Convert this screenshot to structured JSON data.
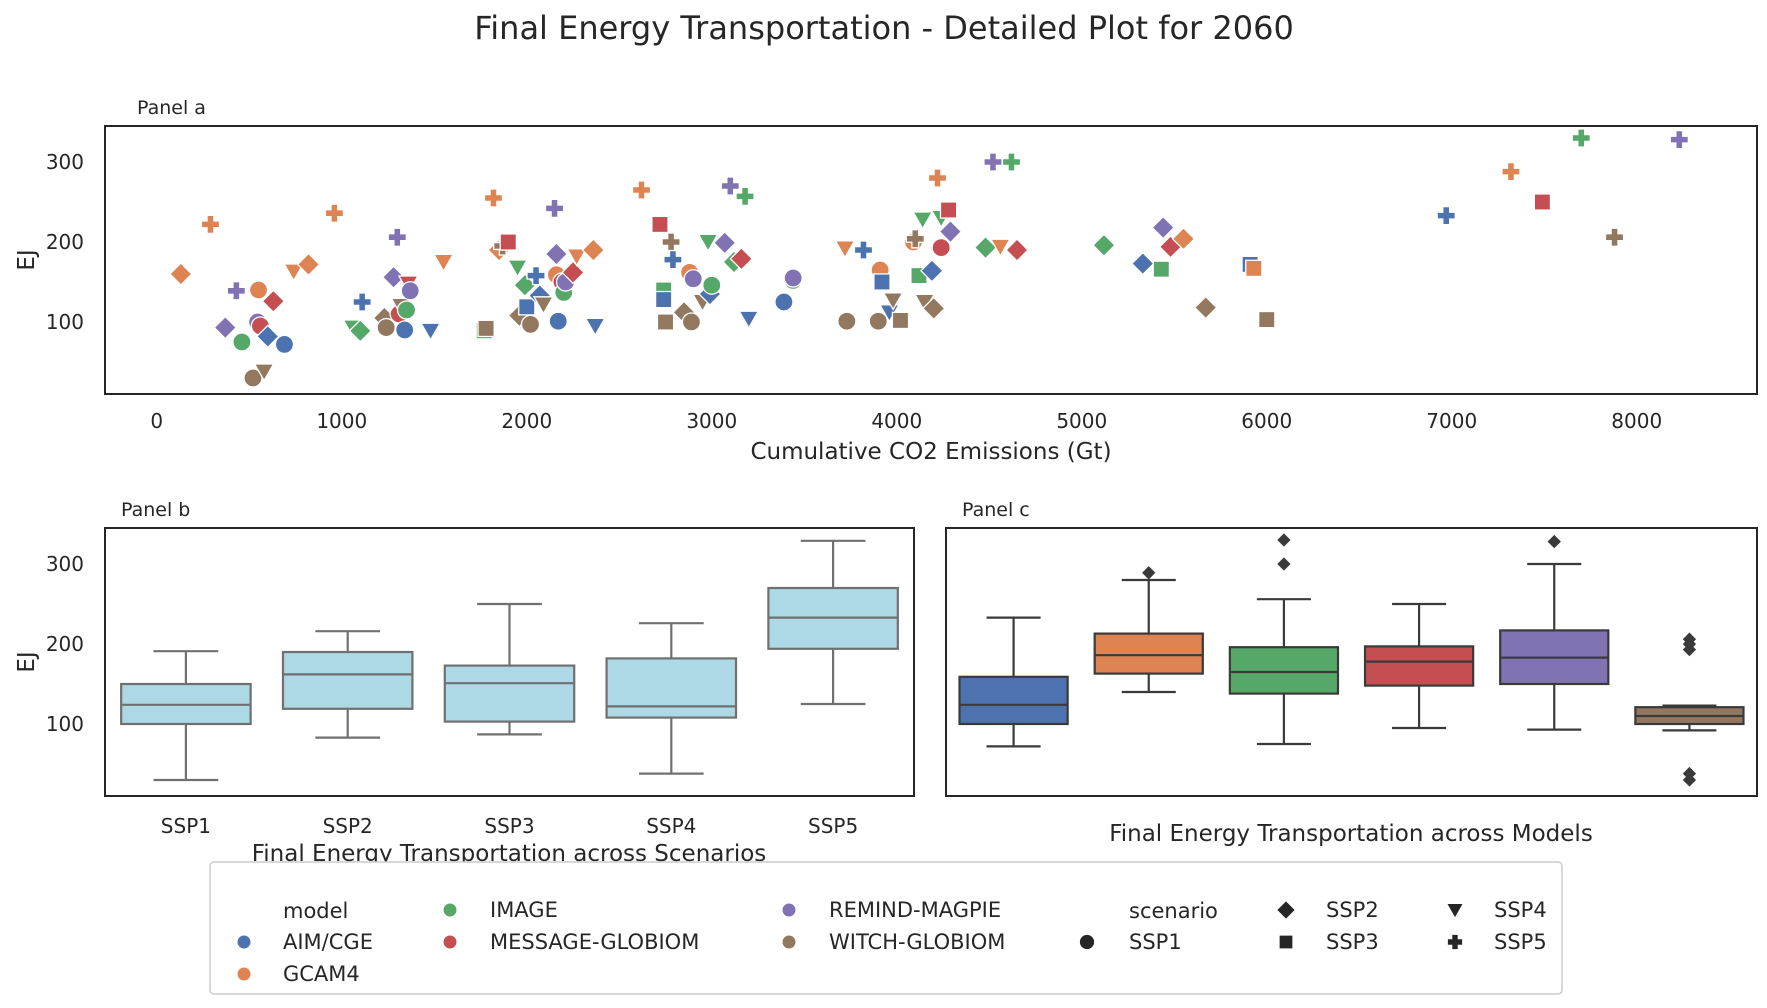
{
  "title": "Final Energy Transportation - Detailed Plot for 2060",
  "colors": {
    "AIM/CGE": "#4c72b0",
    "GCAM4": "#dd8452",
    "IMAGE": "#55a868",
    "MESSAGE-GLOBIOM": "#c44e52",
    "REMIND-MAGPIE": "#8172b3",
    "WITCH-GLOBIOM": "#937860",
    "scenario_box": "#add8e6"
  },
  "chart_data": [
    {
      "type": "scatter",
      "panel_label": "Panel a",
      "xlabel": "Cumulative CO2 Emissions (Gt)",
      "ylabel": "EJ",
      "xlim": [
        -280,
        8650
      ],
      "ylim": [
        10,
        345
      ],
      "xticks": [
        0,
        1000,
        2000,
        3000,
        4000,
        5000,
        6000,
        7000,
        8000
      ],
      "yticks": [
        100,
        200,
        300
      ],
      "grid": false,
      "points": [
        {
          "x": 130,
          "y": 160,
          "model": "GCAM4",
          "scenario": "SSP2"
        },
        {
          "x": 290,
          "y": 222,
          "model": "GCAM4",
          "scenario": "SSP5"
        },
        {
          "x": 370,
          "y": 93,
          "model": "REMIND-MAGPIE",
          "scenario": "SSP2"
        },
        {
          "x": 430,
          "y": 139,
          "model": "REMIND-MAGPIE",
          "scenario": "SSP5"
        },
        {
          "x": 460,
          "y": 75,
          "model": "IMAGE",
          "scenario": "SSP1"
        },
        {
          "x": 520,
          "y": 30,
          "model": "WITCH-GLOBIOM",
          "scenario": "SSP1"
        },
        {
          "x": 545,
          "y": 100,
          "model": "REMIND-MAGPIE",
          "scenario": "SSP1"
        },
        {
          "x": 550,
          "y": 140,
          "model": "GCAM4",
          "scenario": "SSP1"
        },
        {
          "x": 560,
          "y": 95,
          "model": "MESSAGE-GLOBIOM",
          "scenario": "SSP1"
        },
        {
          "x": 580,
          "y": 38,
          "model": "WITCH-GLOBIOM",
          "scenario": "SSP4"
        },
        {
          "x": 600,
          "y": 82,
          "model": "AIM/CGE",
          "scenario": "SSP2"
        },
        {
          "x": 630,
          "y": 126,
          "model": "MESSAGE-GLOBIOM",
          "scenario": "SSP2"
        },
        {
          "x": 690,
          "y": 72,
          "model": "AIM/CGE",
          "scenario": "SSP1"
        },
        {
          "x": 740,
          "y": 163,
          "model": "GCAM4",
          "scenario": "SSP4"
        },
        {
          "x": 820,
          "y": 172,
          "model": "GCAM4",
          "scenario": "SSP2"
        },
        {
          "x": 960,
          "y": 236,
          "model": "GCAM4",
          "scenario": "SSP5"
        },
        {
          "x": 1060,
          "y": 93,
          "model": "IMAGE",
          "scenario": "SSP4"
        },
        {
          "x": 1100,
          "y": 89,
          "model": "IMAGE",
          "scenario": "SSP2"
        },
        {
          "x": 1110,
          "y": 125,
          "model": "AIM/CGE",
          "scenario": "SSP5"
        },
        {
          "x": 1230,
          "y": 105,
          "model": "WITCH-GLOBIOM",
          "scenario": "SSP2"
        },
        {
          "x": 1240,
          "y": 93,
          "model": "WITCH-GLOBIOM",
          "scenario": "SSP1"
        },
        {
          "x": 1280,
          "y": 156,
          "model": "REMIND-MAGPIE",
          "scenario": "SSP2"
        },
        {
          "x": 1300,
          "y": 206,
          "model": "REMIND-MAGPIE",
          "scenario": "SSP5"
        },
        {
          "x": 1310,
          "y": 110,
          "model": "MESSAGE-GLOBIOM",
          "scenario": "SSP1"
        },
        {
          "x": 1320,
          "y": 120,
          "model": "WITCH-GLOBIOM",
          "scenario": "SSP4"
        },
        {
          "x": 1340,
          "y": 90,
          "model": "AIM/CGE",
          "scenario": "SSP1"
        },
        {
          "x": 1350,
          "y": 115,
          "model": "IMAGE",
          "scenario": "SSP1"
        },
        {
          "x": 1360,
          "y": 148,
          "model": "MESSAGE-GLOBIOM",
          "scenario": "SSP4"
        },
        {
          "x": 1370,
          "y": 139,
          "model": "REMIND-MAGPIE",
          "scenario": "SSP1"
        },
        {
          "x": 1480,
          "y": 89,
          "model": "AIM/CGE",
          "scenario": "SSP4"
        },
        {
          "x": 1550,
          "y": 175,
          "model": "GCAM4",
          "scenario": "SSP4"
        },
        {
          "x": 1770,
          "y": 89,
          "model": "IMAGE",
          "scenario": "SSP3"
        },
        {
          "x": 1780,
          "y": 92,
          "model": "WITCH-GLOBIOM",
          "scenario": "SSP3"
        },
        {
          "x": 1820,
          "y": 255,
          "model": "GCAM4",
          "scenario": "SSP5"
        },
        {
          "x": 1850,
          "y": 190,
          "model": "GCAM4",
          "scenario": "SSP2"
        },
        {
          "x": 1870,
          "y": 195,
          "model": "WITCH-GLOBIOM",
          "scenario": "SSP5"
        },
        {
          "x": 1900,
          "y": 200,
          "model": "MESSAGE-GLOBIOM",
          "scenario": "SSP3"
        },
        {
          "x": 1950,
          "y": 168,
          "model": "IMAGE",
          "scenario": "SSP4"
        },
        {
          "x": 1960,
          "y": 108,
          "model": "WITCH-GLOBIOM",
          "scenario": "SSP2"
        },
        {
          "x": 1990,
          "y": 146,
          "model": "IMAGE",
          "scenario": "SSP2"
        },
        {
          "x": 2000,
          "y": 119,
          "model": "AIM/CGE",
          "scenario": "SSP3"
        },
        {
          "x": 2020,
          "y": 97,
          "model": "WITCH-GLOBIOM",
          "scenario": "SSP1"
        },
        {
          "x": 2050,
          "y": 158,
          "model": "AIM/CGE",
          "scenario": "SSP5"
        },
        {
          "x": 2070,
          "y": 133,
          "model": "AIM/CGE",
          "scenario": "SSP2"
        },
        {
          "x": 2090,
          "y": 122,
          "model": "WITCH-GLOBIOM",
          "scenario": "SSP4"
        },
        {
          "x": 2150,
          "y": 242,
          "model": "REMIND-MAGPIE",
          "scenario": "SSP5"
        },
        {
          "x": 2160,
          "y": 185,
          "model": "REMIND-MAGPIE",
          "scenario": "SSP2"
        },
        {
          "x": 2160,
          "y": 159,
          "model": "GCAM4",
          "scenario": "SSP1"
        },
        {
          "x": 2170,
          "y": 101,
          "model": "AIM/CGE",
          "scenario": "SSP1"
        },
        {
          "x": 2190,
          "y": 150,
          "model": "MESSAGE-GLOBIOM",
          "scenario": "SSP1"
        },
        {
          "x": 2200,
          "y": 137,
          "model": "IMAGE",
          "scenario": "SSP1"
        },
        {
          "x": 2210,
          "y": 150,
          "model": "REMIND-MAGPIE",
          "scenario": "SSP1"
        },
        {
          "x": 2250,
          "y": 162,
          "model": "MESSAGE-GLOBIOM",
          "scenario": "SSP2"
        },
        {
          "x": 2270,
          "y": 182,
          "model": "GCAM4",
          "scenario": "SSP4"
        },
        {
          "x": 2360,
          "y": 190,
          "model": "GCAM4",
          "scenario": "SSP2"
        },
        {
          "x": 2370,
          "y": 95,
          "model": "AIM/CGE",
          "scenario": "SSP4"
        },
        {
          "x": 2620,
          "y": 265,
          "model": "GCAM4",
          "scenario": "SSP5"
        },
        {
          "x": 2720,
          "y": 222,
          "model": "MESSAGE-GLOBIOM",
          "scenario": "SSP3"
        },
        {
          "x": 2740,
          "y": 140,
          "model": "IMAGE",
          "scenario": "SSP3"
        },
        {
          "x": 2740,
          "y": 128,
          "model": "AIM/CGE",
          "scenario": "SSP3"
        },
        {
          "x": 2750,
          "y": 100,
          "model": "WITCH-GLOBIOM",
          "scenario": "SSP3"
        },
        {
          "x": 2780,
          "y": 200,
          "model": "WITCH-GLOBIOM",
          "scenario": "SSP5"
        },
        {
          "x": 2790,
          "y": 178,
          "model": "AIM/CGE",
          "scenario": "SSP5"
        },
        {
          "x": 2850,
          "y": 112,
          "model": "WITCH-GLOBIOM",
          "scenario": "SSP2"
        },
        {
          "x": 2880,
          "y": 162,
          "model": "GCAM4",
          "scenario": "SSP1"
        },
        {
          "x": 2890,
          "y": 100,
          "model": "WITCH-GLOBIOM",
          "scenario": "SSP1"
        },
        {
          "x": 2900,
          "y": 154,
          "model": "REMIND-MAGPIE",
          "scenario": "SSP1"
        },
        {
          "x": 2950,
          "y": 125,
          "model": "WITCH-GLOBIOM",
          "scenario": "SSP4"
        },
        {
          "x": 2980,
          "y": 200,
          "model": "IMAGE",
          "scenario": "SSP4"
        },
        {
          "x": 2990,
          "y": 135,
          "model": "AIM/CGE",
          "scenario": "SSP2"
        },
        {
          "x": 3000,
          "y": 146,
          "model": "IMAGE",
          "scenario": "SSP1"
        },
        {
          "x": 3070,
          "y": 199,
          "model": "REMIND-MAGPIE",
          "scenario": "SSP2"
        },
        {
          "x": 3100,
          "y": 270,
          "model": "REMIND-MAGPIE",
          "scenario": "SSP5"
        },
        {
          "x": 3120,
          "y": 175,
          "model": "IMAGE",
          "scenario": "SSP2"
        },
        {
          "x": 3160,
          "y": 179,
          "model": "MESSAGE-GLOBIOM",
          "scenario": "SSP2"
        },
        {
          "x": 3180,
          "y": 257,
          "model": "IMAGE",
          "scenario": "SSP5"
        },
        {
          "x": 3200,
          "y": 104,
          "model": "AIM/CGE",
          "scenario": "SSP4"
        },
        {
          "x": 3390,
          "y": 125,
          "model": "AIM/CGE",
          "scenario": "SSP1"
        },
        {
          "x": 3440,
          "y": 152,
          "model": "IMAGE",
          "scenario": "SSP1"
        },
        {
          "x": 3440,
          "y": 155,
          "model": "REMIND-MAGPIE",
          "scenario": "SSP1"
        },
        {
          "x": 3720,
          "y": 192,
          "model": "GCAM4",
          "scenario": "SSP4"
        },
        {
          "x": 3730,
          "y": 101,
          "model": "WITCH-GLOBIOM",
          "scenario": "SSP1"
        },
        {
          "x": 3820,
          "y": 190,
          "model": "AIM/CGE",
          "scenario": "SSP5"
        },
        {
          "x": 3900,
          "y": 101,
          "model": "WITCH-GLOBIOM",
          "scenario": "SSP1"
        },
        {
          "x": 3910,
          "y": 165,
          "model": "GCAM4",
          "scenario": "SSP1"
        },
        {
          "x": 3920,
          "y": 150,
          "model": "AIM/CGE",
          "scenario": "SSP3"
        },
        {
          "x": 3960,
          "y": 112,
          "model": "AIM/CGE",
          "scenario": "SSP4"
        },
        {
          "x": 3980,
          "y": 127,
          "model": "WITCH-GLOBIOM",
          "scenario": "SSP4"
        },
        {
          "x": 4020,
          "y": 102,
          "model": "WITCH-GLOBIOM",
          "scenario": "SSP3"
        },
        {
          "x": 4090,
          "y": 200,
          "model": "GCAM4",
          "scenario": "SSP1"
        },
        {
          "x": 4100,
          "y": 204,
          "model": "WITCH-GLOBIOM",
          "scenario": "SSP5"
        },
        {
          "x": 4120,
          "y": 158,
          "model": "IMAGE",
          "scenario": "SSP3"
        },
        {
          "x": 4140,
          "y": 228,
          "model": "IMAGE",
          "scenario": "SSP4"
        },
        {
          "x": 4150,
          "y": 125,
          "model": "WITCH-GLOBIOM",
          "scenario": "SSP4"
        },
        {
          "x": 4190,
          "y": 164,
          "model": "AIM/CGE",
          "scenario": "SSP2"
        },
        {
          "x": 4200,
          "y": 117,
          "model": "WITCH-GLOBIOM",
          "scenario": "SSP2"
        },
        {
          "x": 4220,
          "y": 280,
          "model": "GCAM4",
          "scenario": "SSP5"
        },
        {
          "x": 4240,
          "y": 230,
          "model": "IMAGE",
          "scenario": "SSP4"
        },
        {
          "x": 4240,
          "y": 193,
          "model": "MESSAGE-GLOBIOM",
          "scenario": "SSP1"
        },
        {
          "x": 4280,
          "y": 240,
          "model": "MESSAGE-GLOBIOM",
          "scenario": "SSP3"
        },
        {
          "x": 4290,
          "y": 213,
          "model": "REMIND-MAGPIE",
          "scenario": "SSP2"
        },
        {
          "x": 4480,
          "y": 193,
          "model": "IMAGE",
          "scenario": "SSP2"
        },
        {
          "x": 4520,
          "y": 300,
          "model": "REMIND-MAGPIE",
          "scenario": "SSP5"
        },
        {
          "x": 4560,
          "y": 194,
          "model": "GCAM4",
          "scenario": "SSP4"
        },
        {
          "x": 4620,
          "y": 300,
          "model": "IMAGE",
          "scenario": "SSP5"
        },
        {
          "x": 4650,
          "y": 190,
          "model": "MESSAGE-GLOBIOM",
          "scenario": "SSP2"
        },
        {
          "x": 5120,
          "y": 196,
          "model": "IMAGE",
          "scenario": "SSP2"
        },
        {
          "x": 5330,
          "y": 173,
          "model": "AIM/CGE",
          "scenario": "SSP2"
        },
        {
          "x": 5430,
          "y": 166,
          "model": "IMAGE",
          "scenario": "SSP3"
        },
        {
          "x": 5440,
          "y": 218,
          "model": "REMIND-MAGPIE",
          "scenario": "SSP2"
        },
        {
          "x": 5480,
          "y": 194,
          "model": "MESSAGE-GLOBIOM",
          "scenario": "SSP2"
        },
        {
          "x": 5550,
          "y": 204,
          "model": "GCAM4",
          "scenario": "SSP2"
        },
        {
          "x": 5670,
          "y": 118,
          "model": "WITCH-GLOBIOM",
          "scenario": "SSP2"
        },
        {
          "x": 5910,
          "y": 172,
          "model": "AIM/CGE",
          "scenario": "SSP3"
        },
        {
          "x": 5930,
          "y": 167,
          "model": "GCAM4",
          "scenario": "SSP3"
        },
        {
          "x": 6000,
          "y": 103,
          "model": "WITCH-GLOBIOM",
          "scenario": "SSP3"
        },
        {
          "x": 6970,
          "y": 233,
          "model": "AIM/CGE",
          "scenario": "SSP5"
        },
        {
          "x": 7320,
          "y": 288,
          "model": "GCAM4",
          "scenario": "SSP5"
        },
        {
          "x": 7490,
          "y": 250,
          "model": "MESSAGE-GLOBIOM",
          "scenario": "SSP3"
        },
        {
          "x": 7700,
          "y": 330,
          "model": "IMAGE",
          "scenario": "SSP5"
        },
        {
          "x": 7880,
          "y": 206,
          "model": "WITCH-GLOBIOM",
          "scenario": "SSP5"
        },
        {
          "x": 8230,
          "y": 328,
          "model": "REMIND-MAGPIE",
          "scenario": "SSP5"
        }
      ]
    },
    {
      "type": "box",
      "panel_label": "Panel b",
      "xlabel": "Final Energy Transportation across Scenarios",
      "ylabel": "EJ",
      "ylim": [
        10,
        345
      ],
      "yticks": [
        100,
        200,
        300
      ],
      "categories": [
        "SSP1",
        "SSP2",
        "SSP3",
        "SSP4",
        "SSP5"
      ],
      "boxes": [
        {
          "min": 30,
          "q1": 100,
          "median": 124,
          "q3": 150,
          "max": 191,
          "outliers": []
        },
        {
          "min": 83,
          "q1": 119,
          "median": 162,
          "q3": 190,
          "max": 216,
          "outliers": []
        },
        {
          "min": 87,
          "q1": 103,
          "median": 151,
          "q3": 173,
          "max": 250,
          "outliers": []
        },
        {
          "min": 38,
          "q1": 108,
          "median": 122,
          "q3": 182,
          "max": 226,
          "outliers": []
        },
        {
          "min": 125,
          "q1": 194,
          "median": 233,
          "q3": 270,
          "max": 329,
          "outliers": []
        }
      ]
    },
    {
      "type": "box",
      "panel_label": "Panel c",
      "xlabel": "Final Energy Transportation across Models",
      "ylabel": "",
      "ylim": [
        10,
        345
      ],
      "categories": [
        "AIM/CGE",
        "GCAM4",
        "IMAGE",
        "MESSAGE-GLOBIOM",
        "REMIND-MAGPIE",
        "WITCH-GLOBIOM"
      ],
      "boxes": [
        {
          "min": 72,
          "q1": 100,
          "median": 124,
          "q3": 159,
          "max": 233,
          "outliers": []
        },
        {
          "min": 140,
          "q1": 163,
          "median": 186,
          "q3": 213,
          "max": 280,
          "outliers": [
            289
          ]
        },
        {
          "min": 75,
          "q1": 138,
          "median": 165,
          "q3": 196,
          "max": 256,
          "outliers": [
            300,
            330
          ]
        },
        {
          "min": 95,
          "q1": 148,
          "median": 178,
          "q3": 197,
          "max": 250,
          "outliers": []
        },
        {
          "min": 93,
          "q1": 150,
          "median": 183,
          "q3": 217,
          "max": 300,
          "outliers": [
            328
          ]
        },
        {
          "min": 92,
          "q1": 100,
          "median": 110,
          "q3": 121,
          "max": 123,
          "outliers": [
            30,
            38,
            193,
            200,
            206
          ]
        }
      ]
    }
  ],
  "legend": {
    "model_title": "model",
    "models": [
      "AIM/CGE",
      "GCAM4",
      "IMAGE",
      "MESSAGE-GLOBIOM",
      "REMIND-MAGPIE",
      "WITCH-GLOBIOM"
    ],
    "scenario_title": "scenario",
    "scenarios": [
      {
        "name": "SSP1",
        "marker": "circle"
      },
      {
        "name": "SSP2",
        "marker": "diamond"
      },
      {
        "name": "SSP3",
        "marker": "square"
      },
      {
        "name": "SSP4",
        "marker": "triangle-down"
      },
      {
        "name": "SSP5",
        "marker": "plus"
      }
    ],
    "placement": "bottom"
  }
}
